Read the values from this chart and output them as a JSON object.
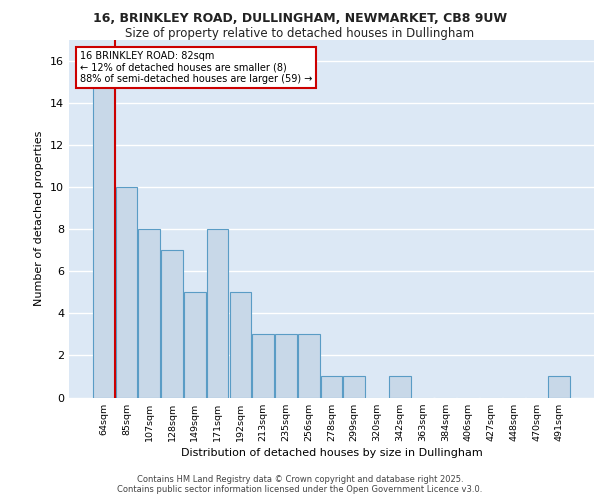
{
  "title_line1": "16, BRINKLEY ROAD, DULLINGHAM, NEWMARKET, CB8 9UW",
  "title_line2": "Size of property relative to detached houses in Dullingham",
  "xlabel": "Distribution of detached houses by size in Dullingham",
  "ylabel": "Number of detached properties",
  "categories": [
    "64sqm",
    "85sqm",
    "107sqm",
    "128sqm",
    "149sqm",
    "171sqm",
    "192sqm",
    "213sqm",
    "235sqm",
    "256sqm",
    "278sqm",
    "299sqm",
    "320sqm",
    "342sqm",
    "363sqm",
    "384sqm",
    "406sqm",
    "427sqm",
    "448sqm",
    "470sqm",
    "491sqm"
  ],
  "values": [
    15,
    10,
    8,
    7,
    5,
    8,
    5,
    3,
    3,
    3,
    1,
    1,
    0,
    1,
    0,
    0,
    0,
    0,
    0,
    0,
    1
  ],
  "bar_color": "#c8d8e8",
  "bar_edge_color": "#5a9cc5",
  "vline_x_idx": 0.5,
  "vline_color": "#cc0000",
  "annotation_text": "16 BRINKLEY ROAD: 82sqm\n← 12% of detached houses are smaller (8)\n88% of semi-detached houses are larger (59) →",
  "annotation_box_color": "#ffffff",
  "annotation_box_edge": "#cc0000",
  "ylim": [
    0,
    17
  ],
  "yticks": [
    0,
    2,
    4,
    6,
    8,
    10,
    12,
    14,
    16
  ],
  "background_color": "#dce8f5",
  "grid_color": "#ffffff",
  "fig_bg_color": "#ffffff",
  "footer_line1": "Contains HM Land Registry data © Crown copyright and database right 2025.",
  "footer_line2": "Contains public sector information licensed under the Open Government Licence v3.0."
}
